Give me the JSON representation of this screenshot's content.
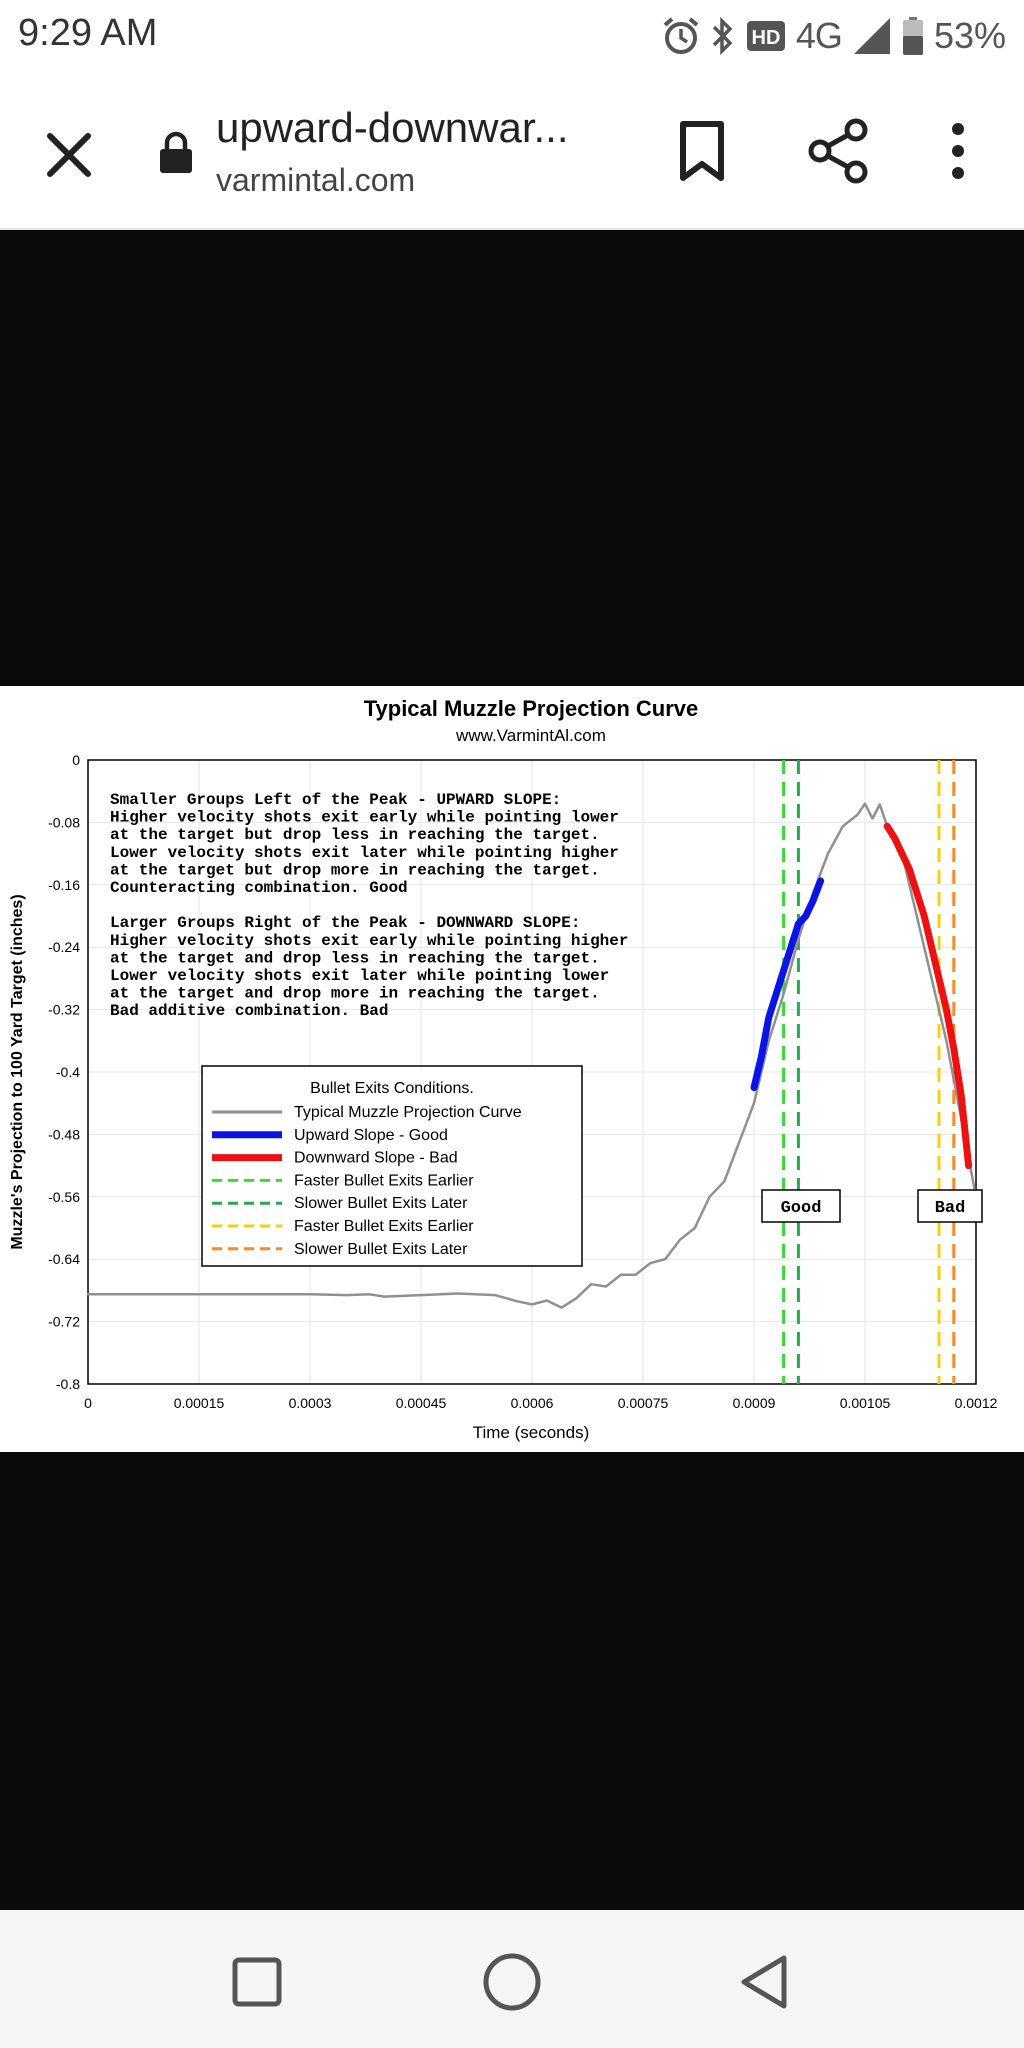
{
  "status_bar": {
    "time": "9:29 AM",
    "network": "4G",
    "battery": "53%",
    "icons": [
      "alarm-icon",
      "bluetooth-icon",
      "hd-icon",
      "signal-icon",
      "battery-icon"
    ]
  },
  "browser": {
    "page_title": "upward-downwar...",
    "domain": "varmintal.com"
  },
  "chart_data": {
    "type": "line",
    "title": "Typical Muzzle Projection Curve",
    "subtitle": "www.VarmintAl.com",
    "xlabel": "Time (seconds)",
    "ylabel": "Muzzle's Projection to 100 Yard Target (inches)",
    "xlim": [
      0,
      0.0012
    ],
    "ylim": [
      -0.8,
      0
    ],
    "x_ticks": [
      "0",
      "0.00015",
      "0.0003",
      "0.00045",
      "0.0006",
      "0.00075",
      "0.0009",
      "0.00105",
      "0.0012"
    ],
    "y_ticks": [
      "0",
      "-0.08",
      "-0.16",
      "-0.24",
      "-0.32",
      "-0.4",
      "-0.48",
      "-0.56",
      "-0.64",
      "-0.72",
      "-0.8"
    ],
    "grid": true,
    "legend_title": "Bullet Exits Conditions.",
    "legend_position": "lower-left",
    "series": [
      {
        "name": "Typical Muzzle Projection Curve",
        "color": "#909090",
        "x": [
          0,
          0.0001,
          0.0002,
          0.0003,
          0.00035,
          0.00038,
          0.0004,
          0.00045,
          0.0005,
          0.00055,
          0.00058,
          0.0006,
          0.00062,
          0.00064,
          0.00066,
          0.00068,
          0.0007,
          0.00072,
          0.00074,
          0.00076,
          0.00078,
          0.0008,
          0.00082,
          0.00084,
          0.00086,
          0.00088,
          0.0009,
          0.00092,
          0.00094,
          0.00096,
          0.00098,
          0.001,
          0.00102,
          0.00104,
          0.00105,
          0.00106,
          0.00107,
          0.00108,
          0.0011,
          0.00112,
          0.00114,
          0.00116,
          0.00118,
          0.0012
        ],
        "y": [
          -0.685,
          -0.685,
          -0.685,
          -0.685,
          -0.686,
          -0.685,
          -0.688,
          -0.686,
          -0.684,
          -0.686,
          -0.694,
          -0.698,
          -0.693,
          -0.702,
          -0.69,
          -0.672,
          -0.675,
          -0.66,
          -0.66,
          -0.645,
          -0.64,
          -0.615,
          -0.6,
          -0.56,
          -0.54,
          -0.49,
          -0.44,
          -0.36,
          -0.3,
          -0.23,
          -0.17,
          -0.12,
          -0.085,
          -0.07,
          -0.056,
          -0.075,
          -0.057,
          -0.085,
          -0.12,
          -0.2,
          -0.28,
          -0.36,
          -0.46,
          -0.56
        ]
      },
      {
        "name": "Upward Slope - Good",
        "color": "#0a14e6",
        "x": [
          0.0009,
          0.00091,
          0.00092,
          0.00093,
          0.00094,
          0.00095,
          0.00096,
          0.00097,
          0.00098,
          0.00099
        ],
        "y": [
          -0.42,
          -0.38,
          -0.33,
          -0.3,
          -0.27,
          -0.24,
          -0.21,
          -0.2,
          -0.18,
          -0.155
        ]
      },
      {
        "name": "Downward Slope - Bad",
        "color": "#ee1111",
        "x": [
          0.00108,
          0.00109,
          0.0011,
          0.00111,
          0.00112,
          0.00113,
          0.00114,
          0.00115,
          0.00116,
          0.00117,
          0.00118,
          0.00119
        ],
        "y": [
          -0.085,
          -0.1,
          -0.12,
          -0.14,
          -0.17,
          -0.2,
          -0.24,
          -0.28,
          -0.32,
          -0.37,
          -0.43,
          -0.52
        ]
      }
    ],
    "vlines": [
      {
        "name": "Faster Bullet Exits Earlier",
        "x": 0.00094,
        "color": "#33dd33"
      },
      {
        "name": "Slower Bullet Exits Later",
        "x": 0.00096,
        "color": "#22aa55"
      },
      {
        "name": "Faster Bullet Exits Earlier",
        "x": 0.00115,
        "color": "#ffcc11"
      },
      {
        "name": "Slower Bullet Exits Later",
        "x": 0.00117,
        "color": "#ff8822"
      }
    ],
    "annotation_lines": [
      "Smaller Groups Left of the Peak - UPWARD SLOPE:",
      "Higher velocity shots exit early while pointing lower",
      "at the target but drop less in reaching the target.",
      "Lower velocity shots exit later while pointing higher",
      "at the target but drop more in reaching the target.",
      "Counteracting combination. Good",
      "",
      "Larger Groups Right of the Peak - DOWNWARD SLOPE:",
      "Higher velocity shots exit early while pointing higher",
      "at the target and drop less in reaching the target.",
      "Lower velocity shots exit later while pointing lower",
      "at the target and drop more in reaching the target.",
      "Bad additive combination. Bad"
    ],
    "labels": [
      "Good",
      "Bad"
    ]
  }
}
